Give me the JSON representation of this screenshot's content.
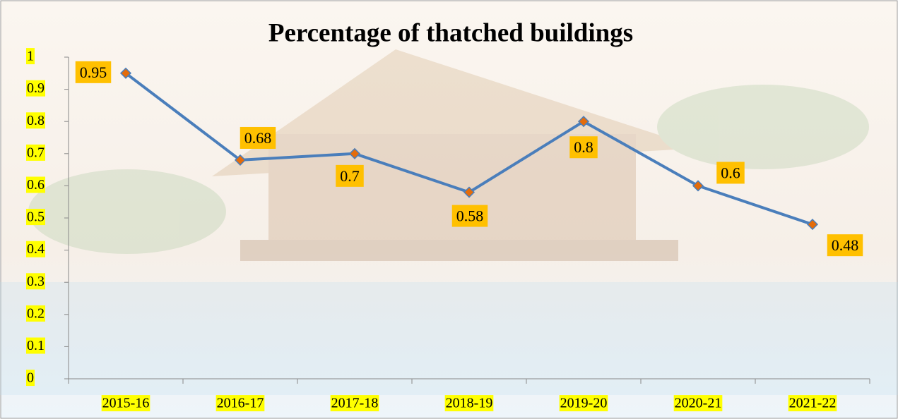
{
  "chart_data": {
    "type": "line",
    "title": "Percentage of thatched buildings",
    "categories": [
      "2015-16",
      "2016-17",
      "2017-18",
      "2018-19",
      "2019-20",
      "2020-21",
      "2021-22"
    ],
    "series": [
      {
        "name": "Percentage of thatched buildings",
        "color": "#4a7ebb",
        "marker_color": "#e46c0a",
        "values": [
          0.95,
          0.68,
          0.7,
          0.58,
          0.8,
          0.6,
          0.48
        ]
      }
    ],
    "ylim": [
      0,
      1
    ],
    "yticks": [
      0,
      0.1,
      0.2,
      0.3,
      0.4,
      0.5,
      0.6,
      0.7,
      0.8,
      0.9,
      1
    ],
    "label_color": "#ffc000",
    "tick_highlight": "#ffff00"
  }
}
